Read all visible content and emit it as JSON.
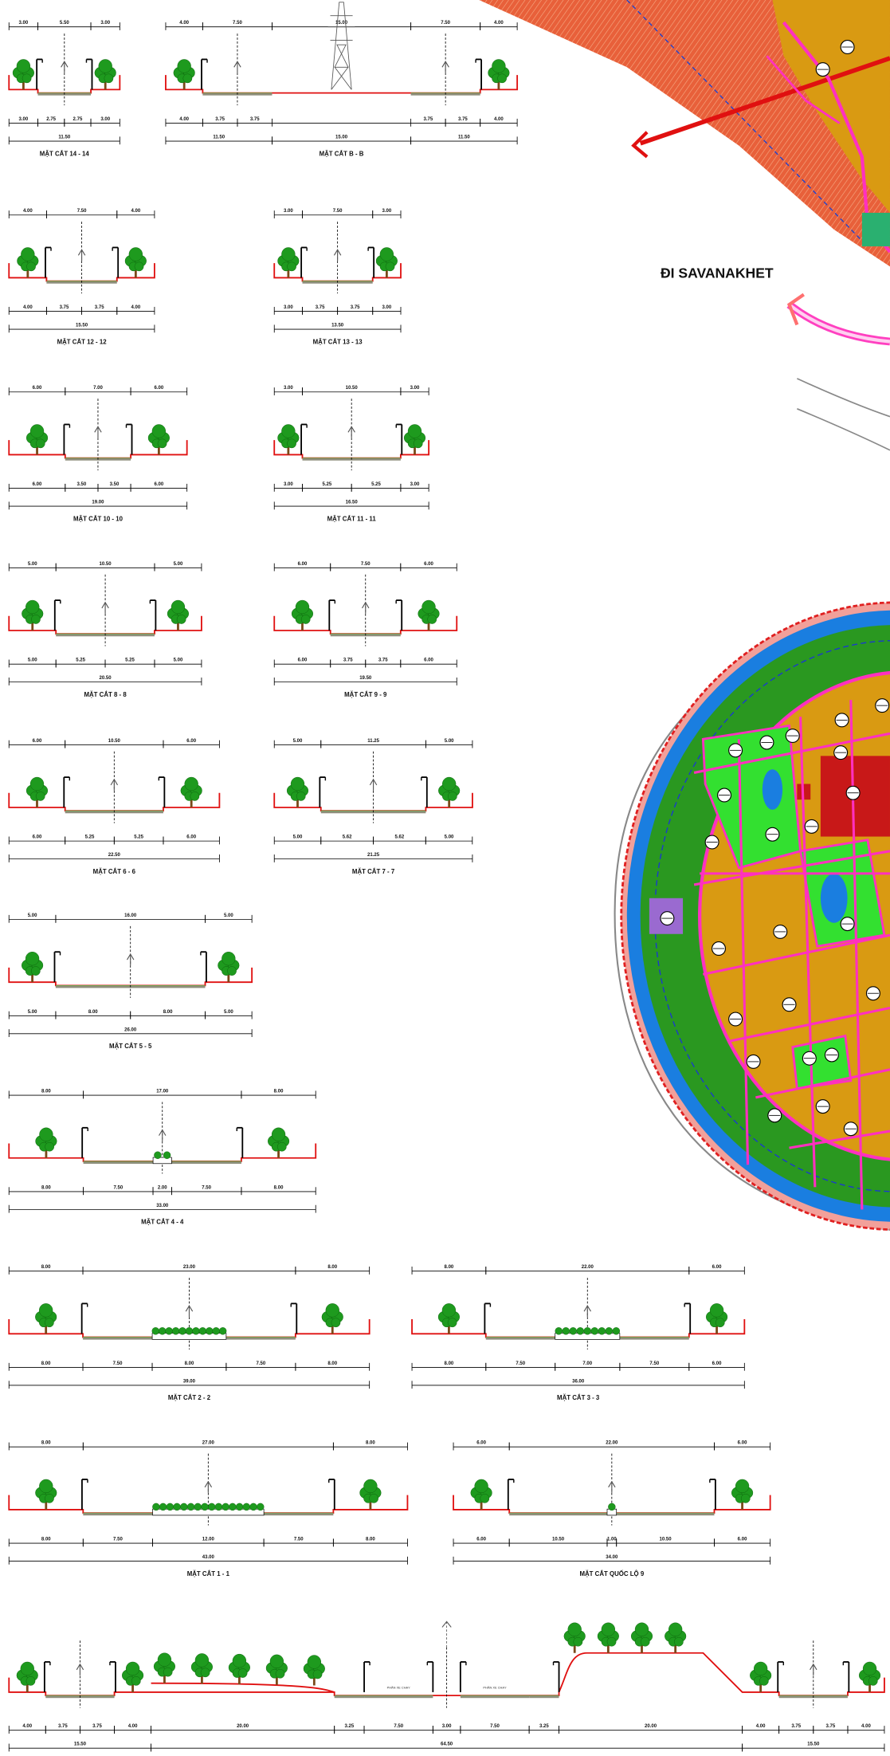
{
  "sections": [
    {
      "title": "MẶT CẮT 14 - 14",
      "top": [
        "3.00",
        "5.50",
        "3.00"
      ],
      "bottom": [
        "3.00",
        "2.75",
        "2.75",
        "3.00"
      ],
      "total": [
        "11.50"
      ]
    },
    {
      "title": "MẶT CẮT B - B",
      "top": [
        "4.00",
        "7.50",
        "15.00",
        "7.50",
        "4.00"
      ],
      "bottom": [
        "4.00",
        "3.75",
        "3.75",
        "3.75",
        "3.75",
        "4.00"
      ],
      "total": [
        "11.50",
        "15.00",
        "11.50"
      ]
    },
    {
      "title": "MẶT CẮT 12 - 12",
      "top": [
        "4.00",
        "7.50",
        "4.00"
      ],
      "bottom": [
        "4.00",
        "3.75",
        "3.75",
        "4.00"
      ],
      "total": [
        "15.50"
      ]
    },
    {
      "title": "MẶT CẮT 13 - 13",
      "top": [
        "3.00",
        "7.50",
        "3.00"
      ],
      "bottom": [
        "3.00",
        "3.75",
        "3.75",
        "3.00"
      ],
      "total": [
        "13.50"
      ]
    },
    {
      "title": "MẶT CẮT 10 - 10",
      "top": [
        "6.00",
        "7.00",
        "6.00"
      ],
      "bottom": [
        "6.00",
        "3.50",
        "3.50",
        "6.00"
      ],
      "total": [
        "19.00"
      ]
    },
    {
      "title": "MẶT CẮT 11 - 11",
      "top": [
        "3.00",
        "10.50",
        "3.00"
      ],
      "bottom": [
        "3.00",
        "5.25",
        "5.25",
        "3.00"
      ],
      "total": [
        "16.50"
      ]
    },
    {
      "title": "MẶT CẮT 8 - 8",
      "top": [
        "5.00",
        "10.50",
        "5.00"
      ],
      "bottom": [
        "5.00",
        "5.25",
        "5.25",
        "5.00"
      ],
      "total": [
        "20.50"
      ]
    },
    {
      "title": "MẶT CẮT 9 - 9",
      "top": [
        "6.00",
        "7.50",
        "6.00"
      ],
      "bottom": [
        "6.00",
        "3.75",
        "3.75",
        "6.00"
      ],
      "total": [
        "19.50"
      ]
    },
    {
      "title": "MẶT CẮT 6 - 6",
      "top": [
        "6.00",
        "10.50",
        "6.00"
      ],
      "bottom": [
        "6.00",
        "5.25",
        "5.25",
        "6.00"
      ],
      "total": [
        "22.50"
      ]
    },
    {
      "title": "MẶT CẮT 7 - 7",
      "top": [
        "5.00",
        "11.25",
        "5.00"
      ],
      "bottom": [
        "5.00",
        "5.62",
        "5.62",
        "5.00"
      ],
      "total": [
        "21.25"
      ]
    },
    {
      "title": "MẶT CẮT 5 - 5",
      "top": [
        "5.00",
        "16.00",
        "5.00"
      ],
      "bottom": [
        "5.00",
        "8.00",
        "8.00",
        "5.00"
      ],
      "total": [
        "26.00"
      ]
    },
    {
      "title": "MẶT CẮT 4 - 4",
      "top": [
        "8.00",
        "17.00",
        "8.00"
      ],
      "bottom": [
        "8.00",
        "7.50",
        "2.00",
        "7.50",
        "8.00"
      ],
      "total": [
        "33.00"
      ]
    },
    {
      "title": "MẶT CẮT 2 - 2",
      "top": [
        "8.00",
        "23.00",
        "8.00"
      ],
      "bottom": [
        "8.00",
        "7.50",
        "8.00",
        "7.50",
        "8.00"
      ],
      "total": [
        "39.00"
      ]
    },
    {
      "title": "MẶT CẮT 3 - 3",
      "top": [
        "8.00",
        "22.00",
        "6.00"
      ],
      "bottom": [
        "8.00",
        "7.50",
        "7.00",
        "7.50",
        "6.00"
      ],
      "total": [
        "36.00"
      ]
    },
    {
      "title": "MẶT CẮT 1 - 1",
      "top": [
        "8.00",
        "27.00",
        "8.00"
      ],
      "bottom": [
        "8.00",
        "7.50",
        "12.00",
        "7.50",
        "8.00"
      ],
      "total": [
        "43.00"
      ]
    },
    {
      "title": "MẶT CẮT QUỐC LỘ 9",
      "top": [
        "6.00",
        "22.00",
        "6.00"
      ],
      "bottom": [
        "6.00",
        "10.50",
        "1.00",
        "10.50",
        "6.00"
      ],
      "total": [
        "34.00"
      ]
    }
  ],
  "long_section": {
    "bottom": [
      "4.00",
      "3.75",
      "3.75",
      "4.00",
      "20.00",
      "3.25",
      "7.50",
      "3.00",
      "7.50",
      "3.25",
      "20.00",
      "4.00",
      "3.75",
      "3.75",
      "4.00"
    ],
    "total": [
      "15.50",
      "64.50",
      "15.50"
    ],
    "labels": [
      "PHẦN XE CHẠY",
      "PHẦN XE CHẠY"
    ]
  },
  "map": {
    "label": "ĐI SAVANAKHET"
  }
}
